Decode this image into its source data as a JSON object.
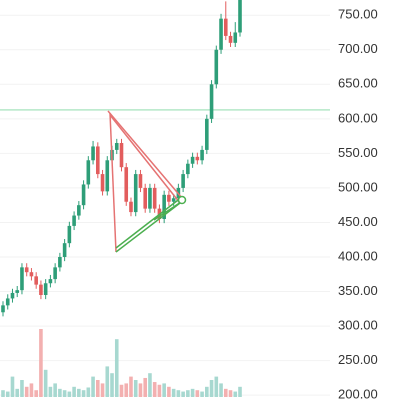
{
  "chart_data": {
    "type": "candlestick",
    "open": [
      320,
      330,
      340,
      348,
      352,
      385,
      378,
      372,
      360,
      345,
      362,
      368,
      385,
      400,
      420,
      445,
      460,
      475,
      505,
      540,
      560,
      520,
      495,
      540,
      555,
      565,
      530,
      480,
      465,
      520,
      500,
      470,
      500,
      470,
      455,
      490,
      480,
      485,
      500,
      520,
      535,
      545,
      540,
      555,
      600,
      650,
      700,
      745,
      720,
      710,
      725
    ],
    "high": [
      336,
      346,
      354,
      358,
      391,
      391,
      384,
      378,
      366,
      368,
      374,
      391,
      406,
      426,
      451,
      466,
      481,
      511,
      546,
      568,
      566,
      526,
      546,
      561,
      571,
      571,
      536,
      486,
      526,
      526,
      506,
      506,
      506,
      476,
      496,
      496,
      491,
      506,
      526,
      541,
      551,
      551,
      561,
      606,
      656,
      706,
      752,
      770,
      726,
      740,
      790
    ],
    "low": [
      314,
      324,
      334,
      342,
      346,
      372,
      366,
      354,
      339,
      339,
      356,
      362,
      379,
      394,
      414,
      439,
      454,
      469,
      499,
      534,
      514,
      489,
      489,
      534,
      549,
      524,
      474,
      459,
      459,
      494,
      464,
      464,
      464,
      449,
      449,
      474,
      474,
      479,
      494,
      514,
      529,
      534,
      534,
      549,
      594,
      644,
      694,
      714,
      704,
      704,
      719
    ],
    "close": [
      330,
      340,
      348,
      352,
      385,
      378,
      372,
      360,
      345,
      362,
      368,
      385,
      400,
      420,
      445,
      460,
      475,
      505,
      540,
      560,
      520,
      495,
      540,
      555,
      565,
      530,
      480,
      465,
      520,
      500,
      470,
      500,
      470,
      455,
      490,
      480,
      485,
      500,
      520,
      535,
      545,
      540,
      555,
      600,
      650,
      700,
      745,
      720,
      710,
      725,
      780
    ],
    "volume": [
      10,
      8,
      30,
      12,
      25,
      15,
      20,
      10,
      100,
      40,
      15,
      20,
      12,
      10,
      8,
      15,
      12,
      10,
      14,
      30,
      25,
      20,
      45,
      35,
      85,
      18,
      20,
      30,
      25,
      20,
      28,
      35,
      22,
      18,
      20,
      15,
      12,
      10,
      8,
      10,
      12,
      10,
      8,
      15,
      25,
      30,
      20,
      12,
      10,
      8,
      15
    ],
    "up_color": "#2e9e78",
    "down_color": "#e25d5d",
    "up_volume_color": "#a7d8d0",
    "down_volume_color": "#f3b0b0",
    "ylim": [
      193,
      772
    ],
    "yticks": [
      {
        "value": 200,
        "label": "200.00"
      },
      {
        "value": 250,
        "label": "250.00"
      },
      {
        "value": 300,
        "label": "300.00"
      },
      {
        "value": 350,
        "label": "350.00"
      },
      {
        "value": 400,
        "label": "400.00"
      },
      {
        "value": 450,
        "label": "450.00"
      },
      {
        "value": 500,
        "label": "500.00"
      },
      {
        "value": 550,
        "label": "550.00"
      },
      {
        "value": 600,
        "label": "600.00"
      },
      {
        "value": 650,
        "label": "650.00"
      },
      {
        "value": 700,
        "label": "700.00"
      },
      {
        "value": 750,
        "label": "750.00"
      }
    ],
    "vlim": [
      0,
      100
    ],
    "hline": {
      "value": 613,
      "color": "#b5e8c8"
    },
    "grid": true
  }
}
